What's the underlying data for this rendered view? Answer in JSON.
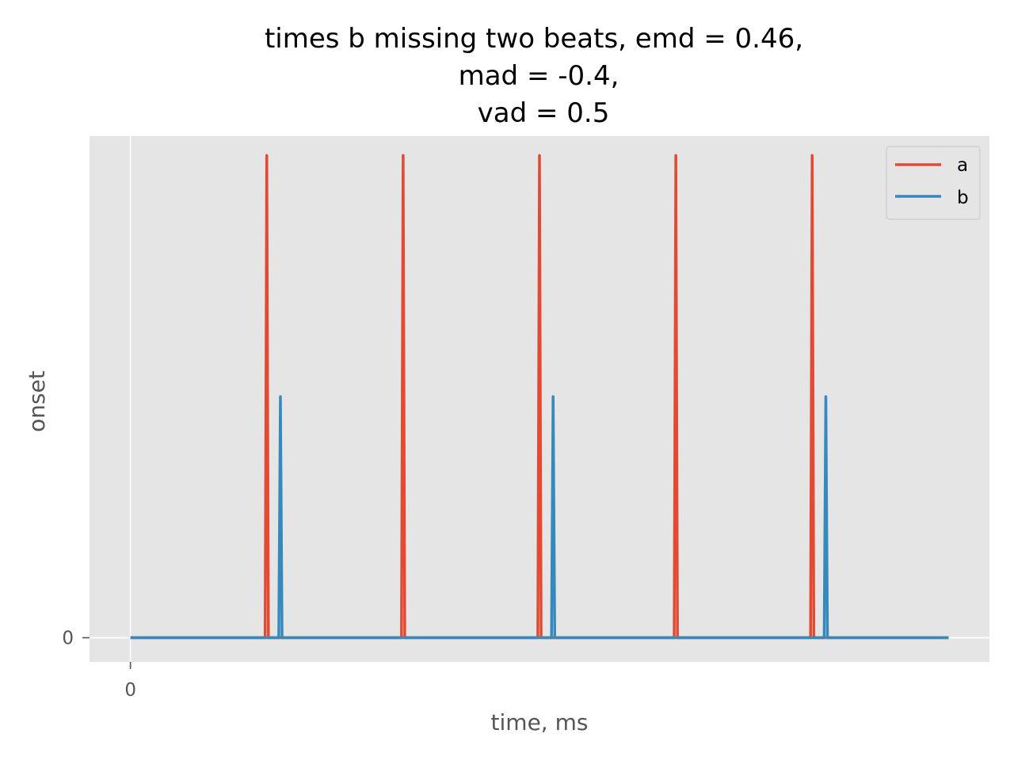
{
  "chart_data": {
    "type": "line",
    "title": [
      "times b missing two beats, emd = 0.46,",
      "mad = -0.4,",
      "vad = 0.5"
    ],
    "xlabel": "time, ms",
    "ylabel": "onset",
    "xticks": [
      {
        "value": 0,
        "label": "0"
      }
    ],
    "yticks": [
      {
        "value": 0,
        "label": "0"
      }
    ],
    "xlim": [
      -300,
      6300
    ],
    "ylim": [
      -0.05,
      1.04
    ],
    "grid": true,
    "legend": "top-right",
    "series": [
      {
        "name": "a",
        "color": "#E24A33",
        "x_range": [
          0,
          6000
        ],
        "baseline": 0,
        "spikes": [
          {
            "x": 1000,
            "y": 1.0
          },
          {
            "x": 2000,
            "y": 1.0
          },
          {
            "x": 3000,
            "y": 1.0
          },
          {
            "x": 4000,
            "y": 1.0
          },
          {
            "x": 5000,
            "y": 1.0
          }
        ]
      },
      {
        "name": "b",
        "color": "#348ABD",
        "x_range": [
          0,
          6000
        ],
        "baseline": 0,
        "spikes": [
          {
            "x": 1100,
            "y": 0.5
          },
          {
            "x": 3100,
            "y": 0.5
          },
          {
            "x": 5100,
            "y": 0.5
          }
        ]
      }
    ]
  }
}
